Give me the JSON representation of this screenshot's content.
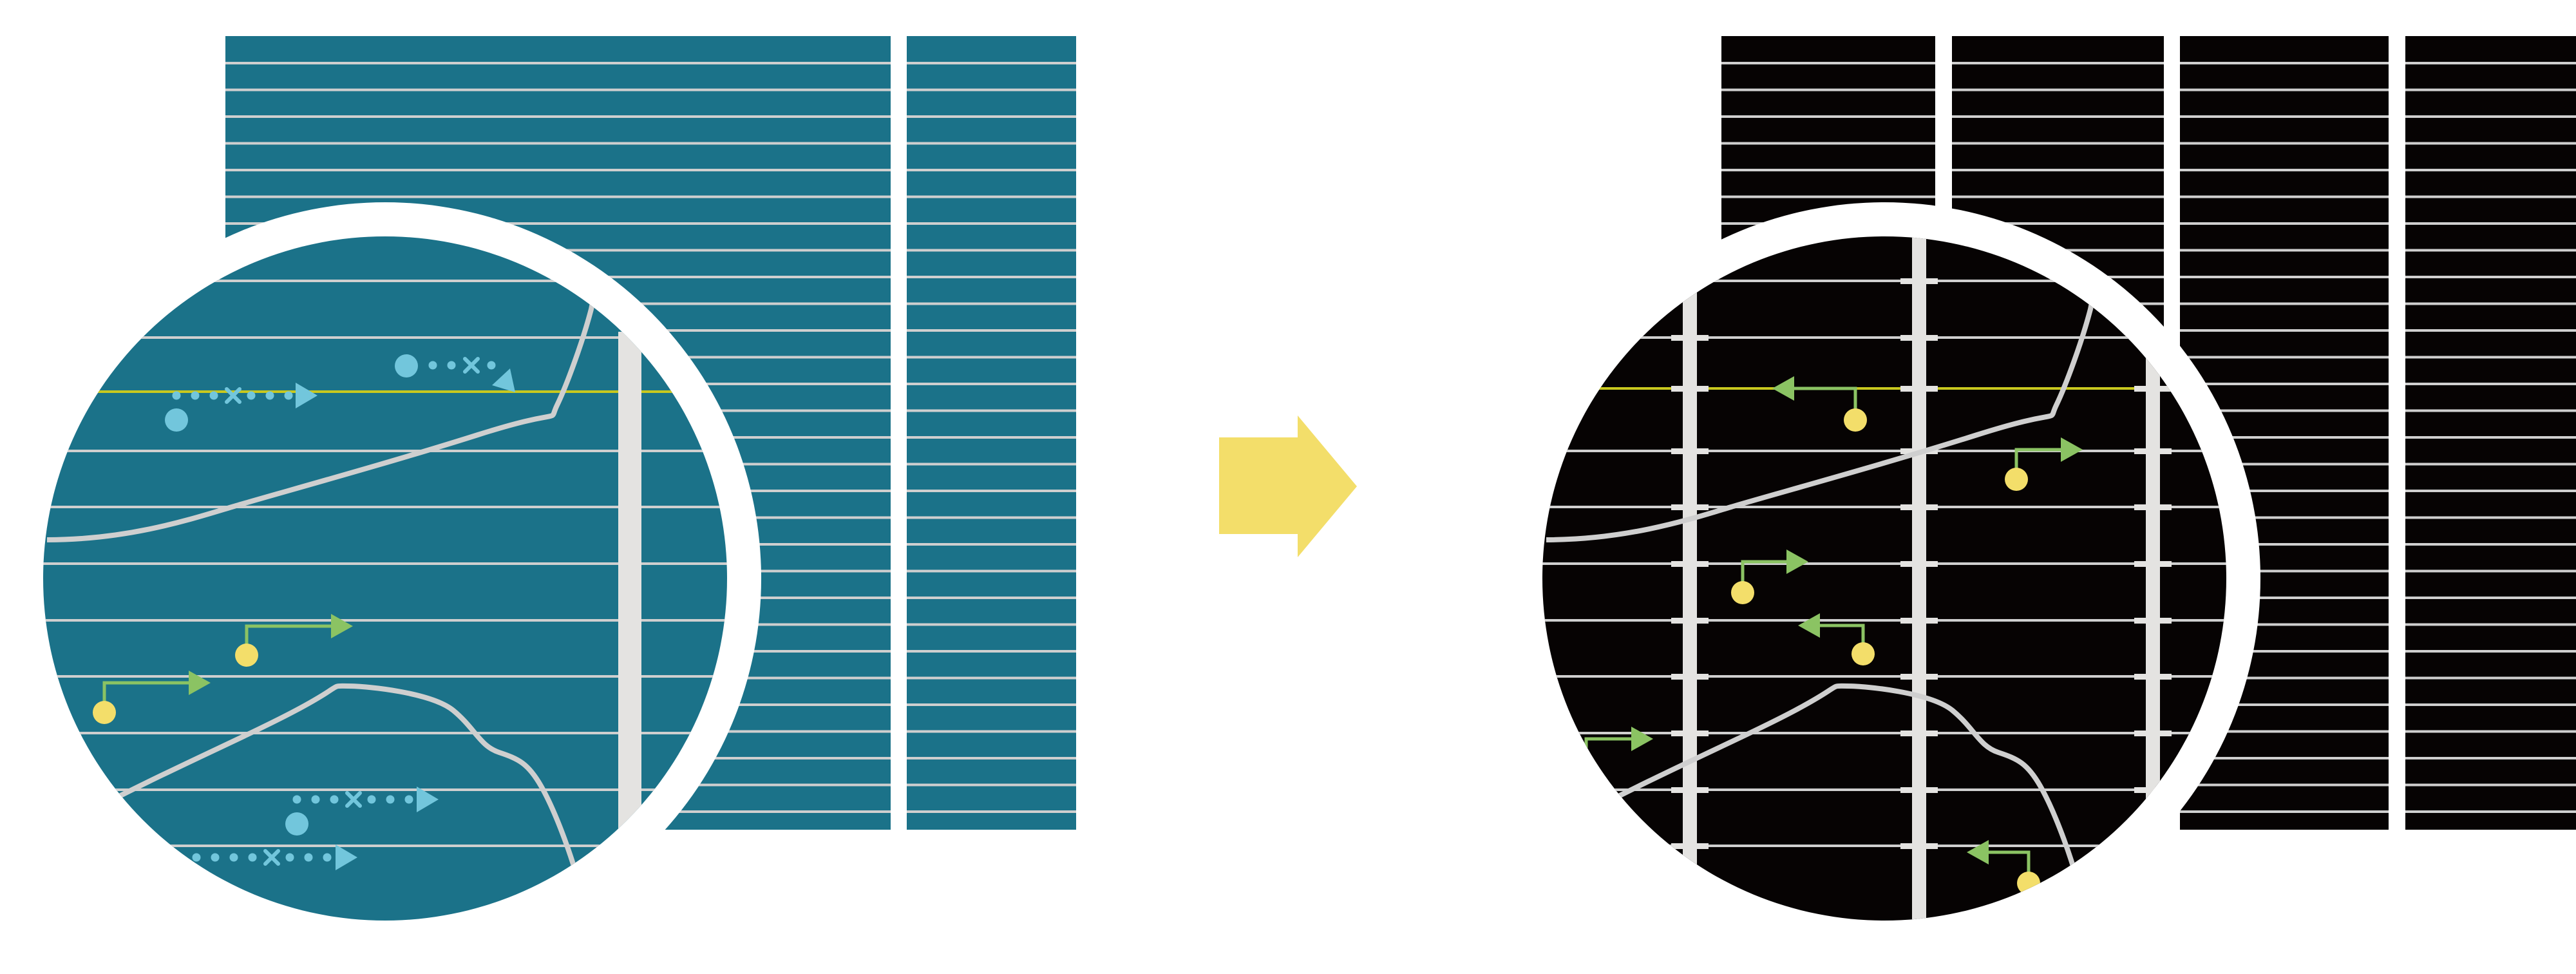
{
  "colors": {
    "before_panel": "#1B7289",
    "after_panel": "#060303",
    "stripe": "#CFCFCF",
    "highlight_line": "#C8C81E",
    "bar": "#E4E3E1",
    "cyan_marker": "#72C6DC",
    "green_arrow": "#8BC363",
    "yellow_dot": "#F3DE6A",
    "transition_arrow": "#F3DE6A",
    "ring": "#FFFFFF"
  },
  "icons": {
    "transition": "right-arrow-icon",
    "cyan_marker": "dotted-arrow-icon",
    "green_marker": "dot-with-arrow-icon"
  }
}
